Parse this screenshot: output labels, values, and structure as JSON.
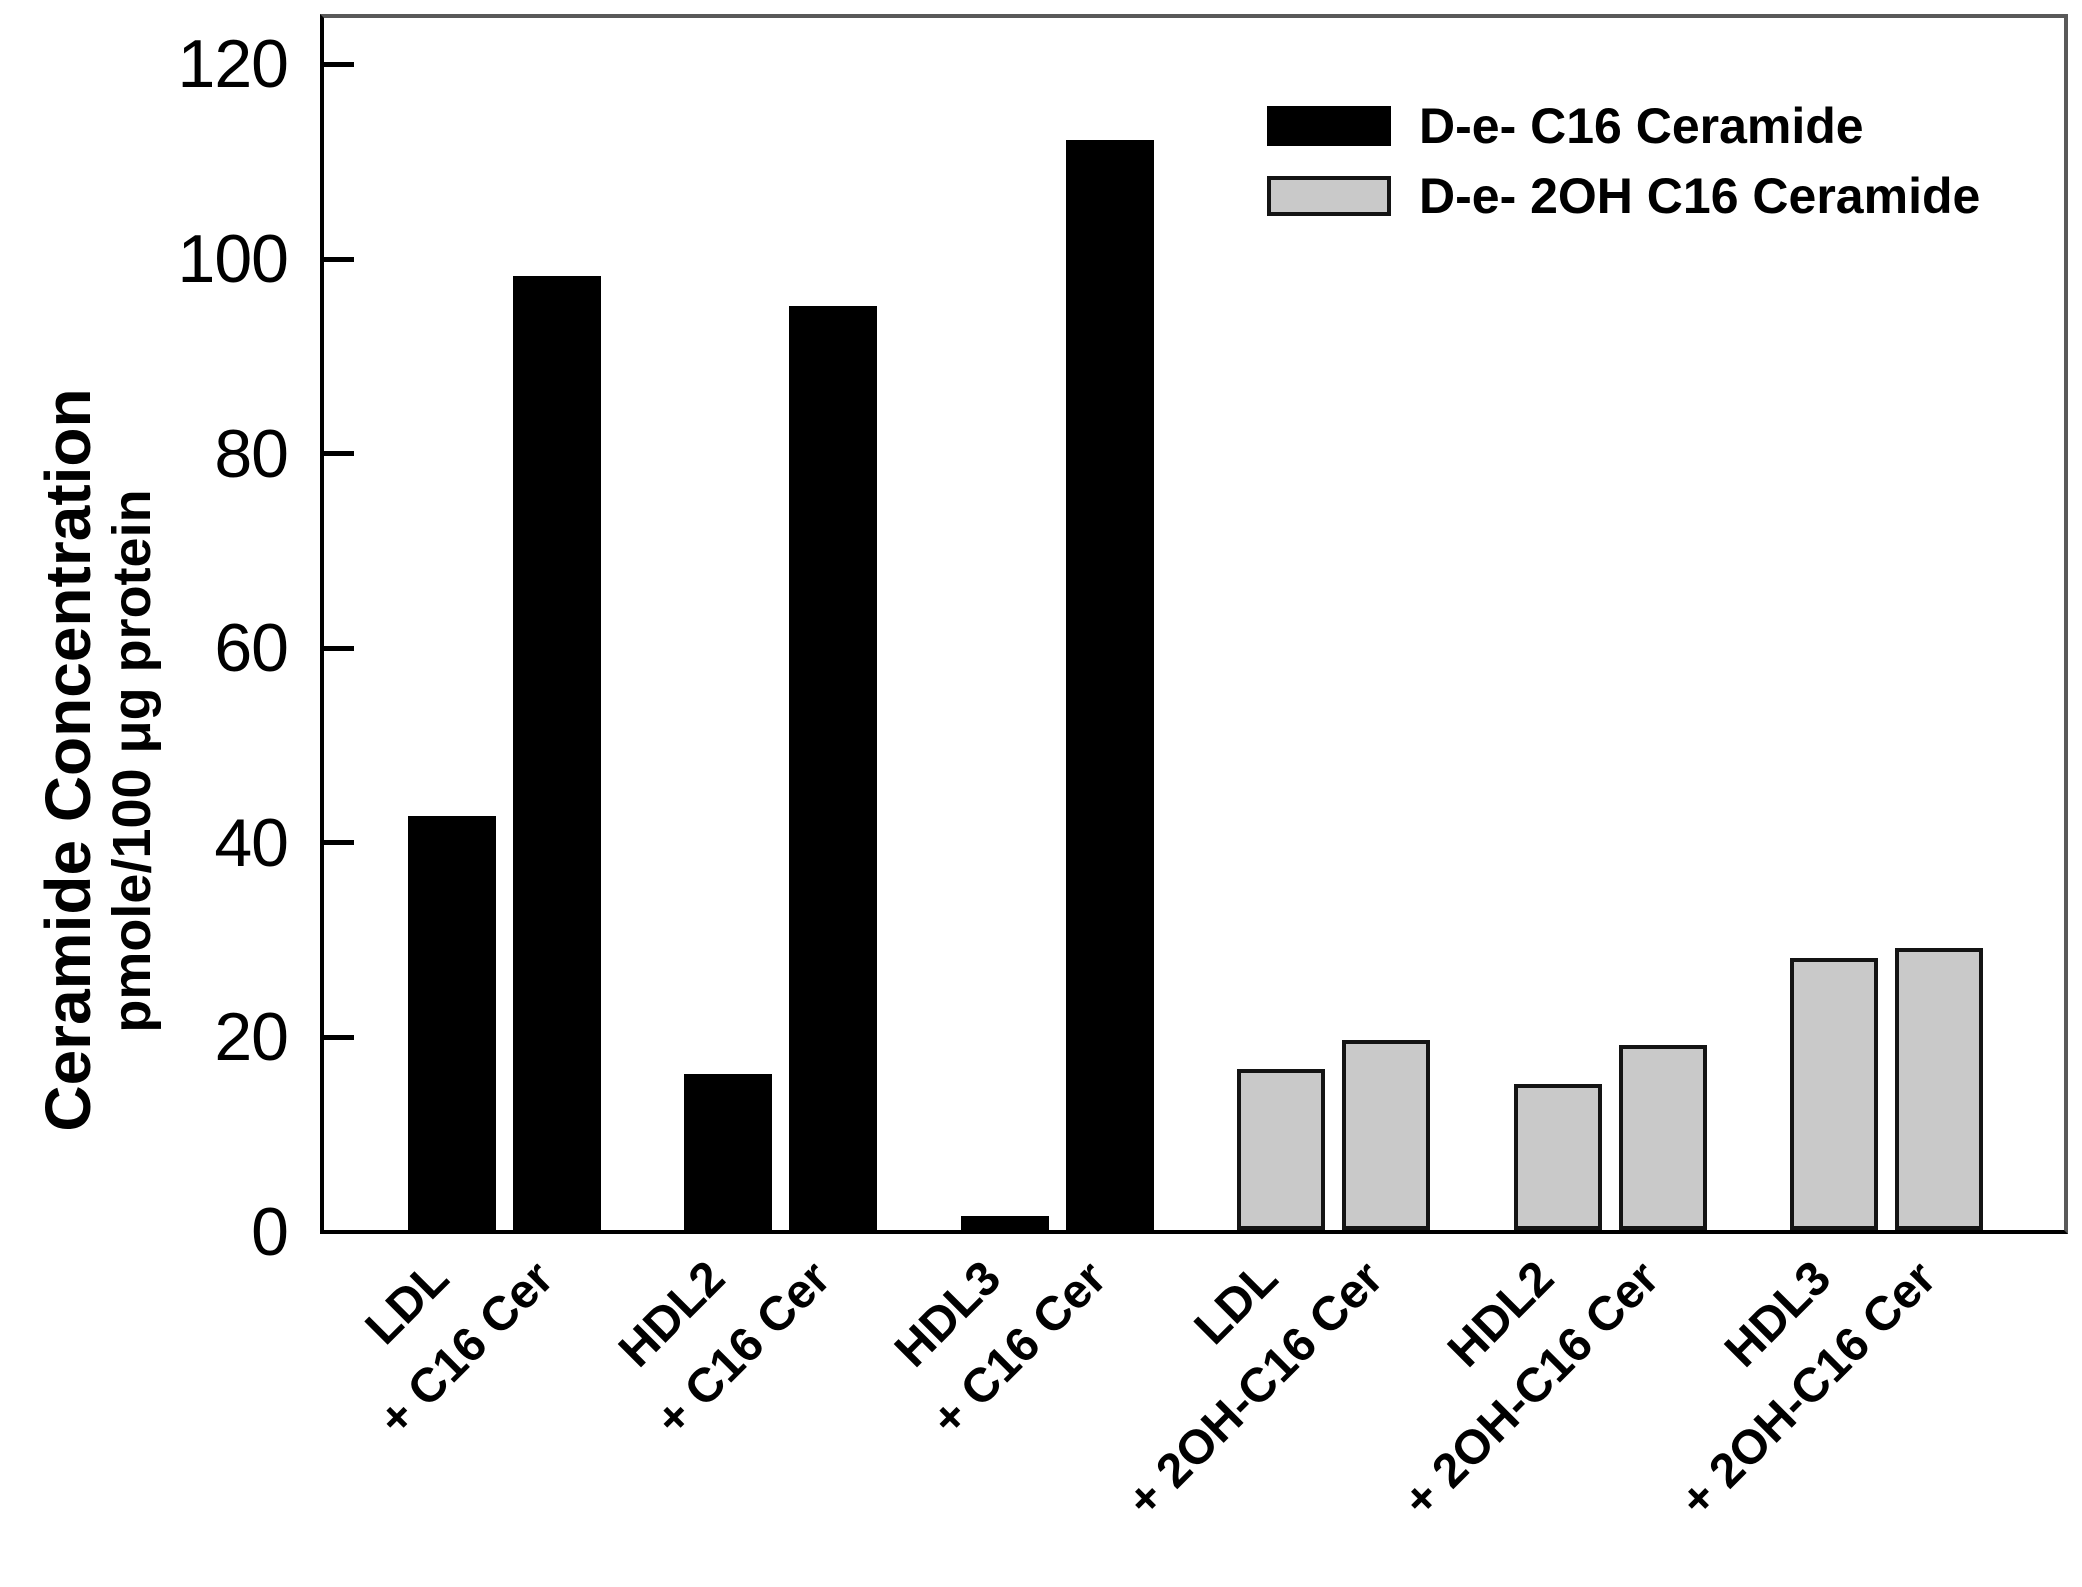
{
  "chart_data": {
    "type": "bar",
    "title": "",
    "ylabel": "Ceramide Concentration",
    "ylabel_sub": "pmole/100 μg protein",
    "xlabel": "",
    "ylim": [
      0,
      125
    ],
    "yticks": [
      0,
      20,
      40,
      60,
      80,
      100,
      120
    ],
    "grid": false,
    "legend_position": "top-right-inside",
    "bar_order_note": "12 single bars left-to-right: all series-1 (black) bars first, then all series-2 (gray) bars",
    "categories": [
      "LDL",
      "+ C16 Cer",
      "HDL2",
      "+ C16 Cer",
      "HDL3",
      "+ C16 Cer",
      "LDL",
      "+ 2OH-C16 Cer",
      "HDL2",
      "+ 2OH-C16 Cer",
      "HDL3",
      "+ 2OH-C16 Cer"
    ],
    "series": [
      {
        "name": "D-e- C16 Ceramide",
        "color": "#000000",
        "outline": "#000000",
        "categories": [
          "LDL",
          "+ C16 Cer",
          "HDL2",
          "+ C16 Cer",
          "HDL3",
          "+ C16 Cer"
        ],
        "values": [
          42.5,
          98,
          16,
          95,
          1.4,
          112
        ]
      },
      {
        "name": "D-e- 2OH C16 Ceramide",
        "color": "#c9c9c9",
        "outline": "#141414",
        "categories": [
          "LDL",
          "+ 2OH-C16 Cer",
          "HDL2",
          "+ 2OH-C16 Cer",
          "HDL3",
          "+ 2OH-C16 Cer"
        ],
        "values": [
          16.5,
          19.5,
          15,
          19,
          28,
          29
        ]
      }
    ]
  },
  "colors": {
    "axis_black": "#000000",
    "box_gray": "#595959",
    "bar_gray_fill": "#c9c9c9",
    "background": "#ffffff"
  }
}
